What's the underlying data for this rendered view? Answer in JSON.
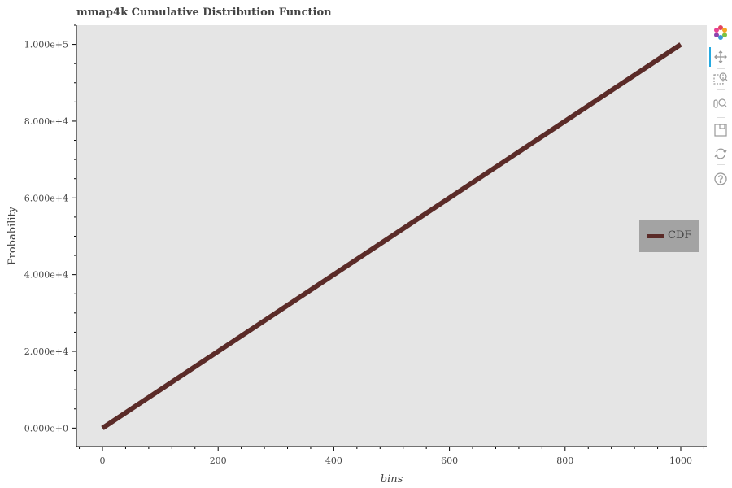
{
  "chart_data": {
    "type": "line",
    "title": "mmap4k Cumulative Distribution Function",
    "xlabel": "bins",
    "ylabel": "Probability",
    "xlim": [
      -45,
      1045
    ],
    "ylim": [
      -4800,
      105000
    ],
    "x_ticks": [
      0,
      200,
      400,
      600,
      800,
      1000
    ],
    "x_tick_labels": [
      "0",
      "200",
      "400",
      "600",
      "800",
      "1000"
    ],
    "y_ticks": [
      0,
      20000,
      40000,
      60000,
      80000,
      100000
    ],
    "y_tick_labels": [
      "0.000e+0",
      "2.000e+4",
      "4.000e+4",
      "6.000e+4",
      "8.000e+4",
      "1.000e+5"
    ],
    "series": [
      {
        "name": "CDF",
        "color": "#5b2b28",
        "x": [
          0,
          1000
        ],
        "y": [
          0,
          100000
        ]
      }
    ],
    "legend": {
      "location": "right",
      "entries": [
        "CDF"
      ]
    },
    "background_color": "#e5e5e5",
    "grid": false
  },
  "toolbar": {
    "tools": [
      "bokeh-logo-icon",
      "pan-icon",
      "box-zoom-icon",
      "wheel-zoom-icon",
      "save-icon",
      "reset-icon",
      "help-icon"
    ]
  }
}
